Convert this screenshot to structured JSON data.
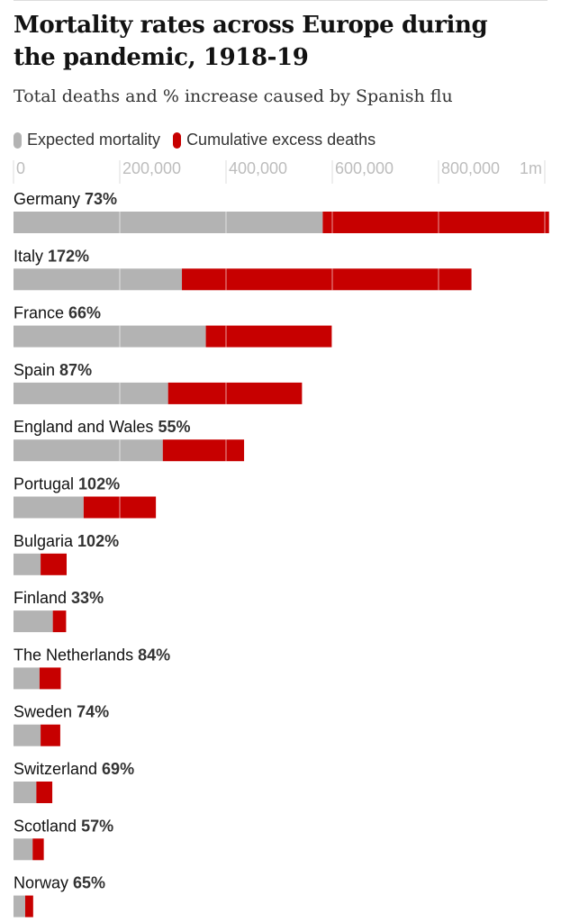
{
  "title": "Mortality rates across Europe during the pandemic, 1918-19",
  "subtitle": "Total deaths and % increase caused by Spanish flu",
  "legend": {
    "expected_label": "Expected mortality",
    "excess_label": "Cumulative excess deaths"
  },
  "colors": {
    "expected": "#b3b3b3",
    "excess": "#c70000",
    "gridline": "#ffffff"
  },
  "chart_data": {
    "type": "bar",
    "orientation": "horizontal",
    "stacked": true,
    "xlim": [
      0,
      1000000
    ],
    "ticks": [
      {
        "value": 0,
        "label": "0"
      },
      {
        "value": 200000,
        "label": "200,000"
      },
      {
        "value": 400000,
        "label": "400,000"
      },
      {
        "value": 600000,
        "label": "600,000"
      },
      {
        "value": 800000,
        "label": "800,000"
      },
      {
        "value": 1000000,
        "label": "1m"
      }
    ],
    "categories": [
      "Germany",
      "Italy",
      "France",
      "Spain",
      "England and Wales",
      "Portugal",
      "Bulgaria",
      "Finland",
      "The Netherlands",
      "Sweden",
      "Switzerland",
      "Scotland",
      "Norway"
    ],
    "percent_labels": [
      "73%",
      "172%",
      "66%",
      "87%",
      "55%",
      "102%",
      "102%",
      "33%",
      "84%",
      "74%",
      "69%",
      "57%",
      "65%"
    ],
    "series": [
      {
        "name": "Expected mortality",
        "values": [
          582000,
          317000,
          362000,
          291000,
          281000,
          132000,
          51000,
          74000,
          49000,
          51000,
          43000,
          36000,
          22000
        ]
      },
      {
        "name": "Cumulative excess deaths",
        "values": [
          426000,
          545000,
          237000,
          252000,
          153000,
          136000,
          49000,
          25000,
          40000,
          37000,
          30000,
          21000,
          15000
        ]
      }
    ]
  }
}
